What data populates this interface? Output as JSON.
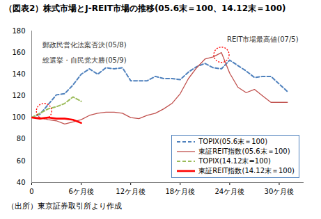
{
  "chart_data": {
    "type": "line",
    "title": "（図表2）株式市場とJ-REIT市場の推移(05.6末＝100、14.12末＝100)",
    "source": "（出所）東京証券取引所より作成",
    "x": [
      0,
      1,
      2,
      3,
      4,
      5,
      6,
      7,
      8,
      9,
      10,
      11,
      12,
      13,
      14,
      15,
      16,
      17,
      18,
      19,
      20,
      21,
      22,
      23,
      24,
      25,
      26,
      27,
      28,
      29,
      30,
      31
    ],
    "xlim": [
      0,
      33
    ],
    "xticks": [
      0,
      {
        "value": 6,
        "label": "6ケ月後"
      },
      {
        "value": 12,
        "label": "12ケ月後"
      },
      {
        "value": 18,
        "label": "18ケ月後"
      },
      {
        "value": 24,
        "label": "24ケ月後"
      },
      {
        "value": 30,
        "label": "30ケ月後"
      }
    ],
    "ylim": [
      40,
      180
    ],
    "yticks": [
      40,
      60,
      80,
      100,
      120,
      140,
      160,
      180
    ],
    "grid": false,
    "legend": "lower right",
    "series": [
      {
        "name": "TOPIX(05.6末＝100)",
        "color": "#4f81bd",
        "line_style": "dashed",
        "values": [
          100,
          103,
          112,
          121,
          122,
          130,
          140,
          145,
          140,
          146,
          145,
          146,
          134,
          134,
          134,
          138,
          136,
          136,
          135,
          142,
          147,
          150,
          146,
          145,
          153,
          148,
          143,
          137,
          138,
          138,
          131,
          124
        ]
      },
      {
        "name": "東証REIT指数(05.6末＝100)",
        "color": "#c0504d",
        "line_style": "solid",
        "values": [
          100,
          100,
          98,
          97,
          94,
          96,
          98,
          102,
          104,
          105,
          105,
          104,
          100,
          99,
          102,
          104,
          108,
          113,
          122,
          136,
          146,
          154,
          156,
          160,
          141,
          128,
          123,
          126,
          120,
          114,
          114,
          114
        ]
      },
      {
        "name": "TOPIX(14.12末=100)",
        "color": "#9bbb59",
        "line_style": "dashed",
        "values": [
          100,
          104,
          108,
          110,
          113,
          119,
          115,
          null,
          null,
          null,
          null,
          null,
          null,
          null,
          null,
          null,
          null,
          null,
          null,
          null,
          null,
          null,
          null,
          null,
          null,
          null,
          null,
          null,
          null,
          null,
          null,
          null
        ]
      },
      {
        "name": "東証REIT指数(14.12末＝100)",
        "color": "#ff0000",
        "line_style": "solid",
        "values": [
          100,
          99,
          100,
          99,
          99,
          98,
          95,
          null,
          null,
          null,
          null,
          null,
          null,
          null,
          null,
          null,
          null,
          null,
          null,
          null,
          null,
          null,
          null,
          null,
          null,
          null,
          null,
          null,
          null,
          null,
          null,
          null
        ]
      }
    ],
    "annotations": [
      {
        "text": "郵政民営化法案否決(05/8)",
        "x": 1.5,
        "y": 106
      },
      {
        "text": "総選挙・自民党大勝(05/9)",
        "x": 1.5,
        "y": 106
      },
      {
        "text": "REIT市場最高値(07/5)",
        "x": 23,
        "y": 158
      }
    ]
  }
}
